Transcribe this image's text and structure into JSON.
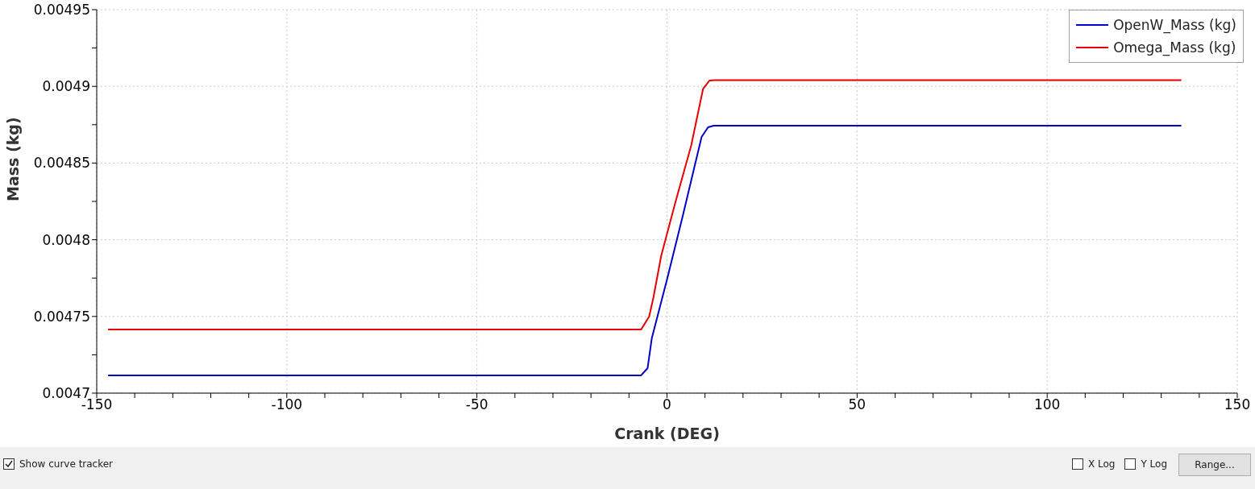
{
  "chart_data": {
    "type": "line",
    "xlabel": "Crank (DEG)",
    "ylabel": "Mass (kg)",
    "series": [
      {
        "name": "OpenW_Mass (kg)",
        "color": "#0000cc",
        "x": [
          -147,
          -6.8,
          -5.1,
          -4.0,
          0,
          4.2,
          9.1,
          10.8,
          12.3,
          135.3
        ],
        "values": [
          0.0047116,
          0.0047116,
          0.0047163,
          0.0047357,
          0.0047741,
          0.0048161,
          0.004867,
          0.0048733,
          0.0048744,
          0.0048744
        ]
      },
      {
        "name": "Omega_Mass (kg)",
        "color": "#e60000",
        "x": [
          -147,
          -6.8,
          -4.7,
          -3.6,
          -1.5,
          2.1,
          6.4,
          9.5,
          11.2,
          12.5,
          135.3
        ],
        "values": [
          0.0047415,
          0.0047415,
          0.0047499,
          0.004762,
          0.0047898,
          0.0048234,
          0.0048618,
          0.0048985,
          0.0049038,
          0.004904,
          0.004904
        ]
      }
    ],
    "xlim": [
      -150,
      150
    ],
    "xticks": [
      -150,
      {
        "value": -140,
        "label": null
      },
      {
        "value": -130,
        "label": null
      },
      {
        "value": -120,
        "label": null
      },
      {
        "value": -110,
        "label": null
      },
      -100,
      {
        "value": -90,
        "label": null
      },
      {
        "value": -80,
        "label": null
      },
      {
        "value": -70,
        "label": null
      },
      {
        "value": -60,
        "label": null
      },
      -50,
      {
        "value": -40,
        "label": null
      },
      {
        "value": -30,
        "label": null
      },
      {
        "value": -20,
        "label": null
      },
      {
        "value": -10,
        "label": null
      },
      0,
      {
        "value": 10,
        "label": null
      },
      {
        "value": 20,
        "label": null
      },
      {
        "value": 30,
        "label": null
      },
      {
        "value": 40,
        "label": null
      },
      50,
      {
        "value": 60,
        "label": null
      },
      {
        "value": 70,
        "label": null
      },
      {
        "value": 80,
        "label": null
      },
      {
        "value": 90,
        "label": null
      },
      100,
      {
        "value": 110,
        "label": null
      },
      {
        "value": 120,
        "label": null
      },
      {
        "value": 130,
        "label": null
      },
      {
        "value": 140,
        "label": null
      },
      150
    ],
    "ylim": [
      0.0047,
      0.00495
    ],
    "yticks": [
      0.0047,
      {
        "value": 0.004725,
        "label": null
      },
      0.00475,
      {
        "value": 0.004775,
        "label": null
      },
      0.0048,
      {
        "value": 0.004825,
        "label": null
      },
      0.00485,
      {
        "value": 0.004875,
        "label": null
      },
      0.0049,
      {
        "value": 0.004925,
        "label": null
      },
      0.00495
    ],
    "grid": true,
    "legend": "top right",
    "marker": "none",
    "line_style": "solid",
    "annotations": [
      "Show curve tracker",
      "X Log",
      "Y Log",
      "Range..."
    ]
  }
}
